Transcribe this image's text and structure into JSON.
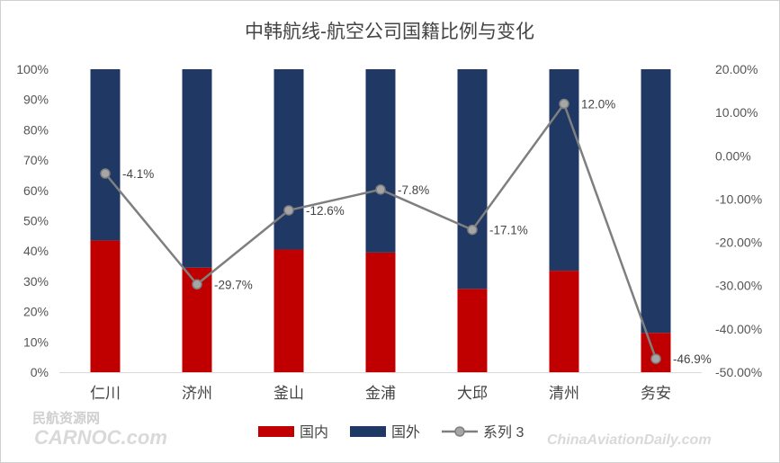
{
  "chart_data": {
    "type": "bar",
    "title": "中韩航线-航空公司国籍比例与变化",
    "categories": [
      "仁川",
      "济州",
      "釜山",
      "金浦",
      "大邱",
      "清州",
      "务安"
    ],
    "series": [
      {
        "name": "国内",
        "type": "stacked-bar",
        "axis": "left",
        "color": "#c00000",
        "values": [
          43.5,
          34.5,
          40.5,
          39.5,
          27.5,
          33.5,
          13
        ]
      },
      {
        "name": "国外",
        "type": "stacked-bar",
        "axis": "left",
        "color": "#1f3864",
        "values": [
          56.5,
          65.5,
          59.5,
          60.5,
          72.5,
          66.5,
          87
        ]
      },
      {
        "name": "系列 3",
        "type": "line",
        "axis": "right",
        "color": "#7f7f7f",
        "values": [
          -4.1,
          -29.7,
          -12.6,
          -7.8,
          -17.1,
          12.0,
          -46.9
        ],
        "labels": [
          "-4.1%",
          "-29.7%",
          "-12.6%",
          "-7.8%",
          "-17.1%",
          "12.0%",
          "-46.9%"
        ]
      }
    ],
    "y_left": {
      "range": [
        0,
        100
      ],
      "ticks": [
        "0%",
        "10%",
        "20%",
        "30%",
        "40%",
        "50%",
        "60%",
        "70%",
        "80%",
        "90%",
        "100%"
      ]
    },
    "y_right": {
      "range": [
        -50,
        20
      ],
      "ticks": [
        "-50.00%",
        "-40.00%",
        "-30.00%",
        "-20.00%",
        "-10.00%",
        "0.00%",
        "10.00%",
        "20.00%"
      ]
    },
    "grid": false,
    "legend_position": "bottom"
  },
  "watermarks": {
    "left_cn": "民航资源网",
    "left_en": "CARNOC.com",
    "right_en": "ChinaAviationDaily.com"
  }
}
